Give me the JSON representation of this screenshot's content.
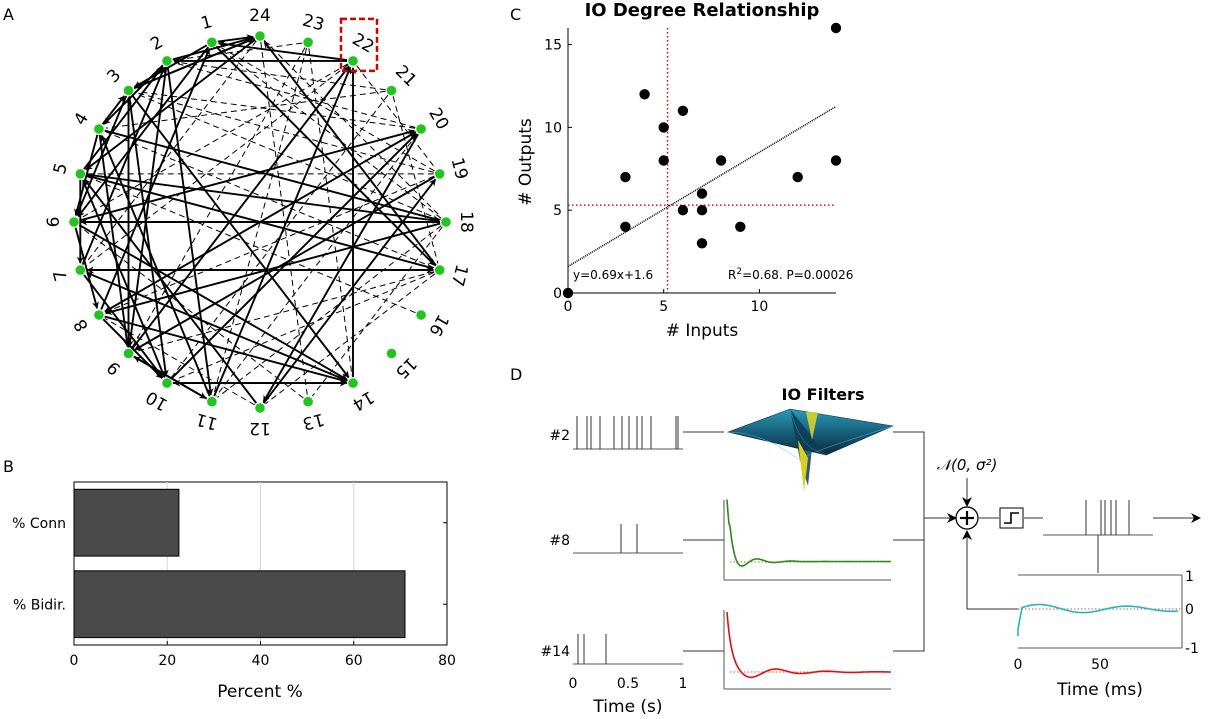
{
  "panels": {
    "a": "A",
    "b": "B",
    "c": "C",
    "d": "D"
  },
  "network": {
    "node_labels": [
      "1",
      "2",
      "3",
      "4",
      "5",
      "6",
      "7",
      "8",
      "9",
      "10",
      "11",
      "12",
      "13",
      "14",
      "15",
      "16",
      "17",
      "18",
      "19",
      "20",
      "21",
      "22",
      "23",
      "24"
    ],
    "highlighted_node": "22",
    "node_color": "#22c422",
    "highlight_color": "#d40000"
  },
  "bar_chart": {
    "chart_data": {
      "type": "bar",
      "orientation": "horizontal",
      "categories": [
        "% Conn",
        "% Bidir."
      ],
      "values": [
        22.5,
        71
      ],
      "xlabel": "Percent %",
      "xlim": [
        0,
        80
      ],
      "xticks": [
        "0",
        "20",
        "40",
        "60",
        "80"
      ],
      "grid": true,
      "bar_color": "#4a4a4a"
    }
  },
  "scatter": {
    "chart_data": {
      "type": "scatter",
      "title": "IO Degree Relationship",
      "xlabel": "# Inputs",
      "ylabel": "# Outputs",
      "xlim": [
        0,
        14
      ],
      "ylim": [
        0,
        16
      ],
      "xticks": [
        "0",
        "5",
        "10"
      ],
      "yticks": [
        "0",
        "5",
        "10",
        "15"
      ],
      "points": [
        {
          "x": 0,
          "y": 0
        },
        {
          "x": 3,
          "y": 7
        },
        {
          "x": 3,
          "y": 4
        },
        {
          "x": 4,
          "y": 12
        },
        {
          "x": 5,
          "y": 10
        },
        {
          "x": 5,
          "y": 8
        },
        {
          "x": 6,
          "y": 11
        },
        {
          "x": 6,
          "y": 5
        },
        {
          "x": 7,
          "y": 6
        },
        {
          "x": 7,
          "y": 5
        },
        {
          "x": 7,
          "y": 3
        },
        {
          "x": 8,
          "y": 8
        },
        {
          "x": 9,
          "y": 4
        },
        {
          "x": 12,
          "y": 7
        },
        {
          "x": 14,
          "y": 16
        },
        {
          "x": 14,
          "y": 8
        }
      ],
      "fit_line": {
        "slope": 0.69,
        "intercept": 1.6
      },
      "mean_x": 5.2,
      "mean_y": 5.3,
      "equation_text": "y=0.69x+1.6",
      "stats_text": "R²=0.68. P=0.00026"
    }
  },
  "filters": {
    "title": "IO Filters",
    "input_labels": [
      "#2",
      "#8",
      "#14"
    ],
    "noise_label": "𝒩(0, σ²)",
    "colors": {
      "trace8": "#2a8a1a",
      "trace14": "#e01010",
      "history": "#20b8c0",
      "surface": "#1a6e8a"
    },
    "raster_time": {
      "xticks": [
        "0",
        "0.5",
        "1"
      ],
      "xlabel": "Time (s)"
    },
    "history_axis": {
      "xticks": [
        "0",
        "50"
      ],
      "xlabel": "Time (ms)",
      "yticks": [
        "1",
        "0",
        "-1"
      ]
    }
  }
}
